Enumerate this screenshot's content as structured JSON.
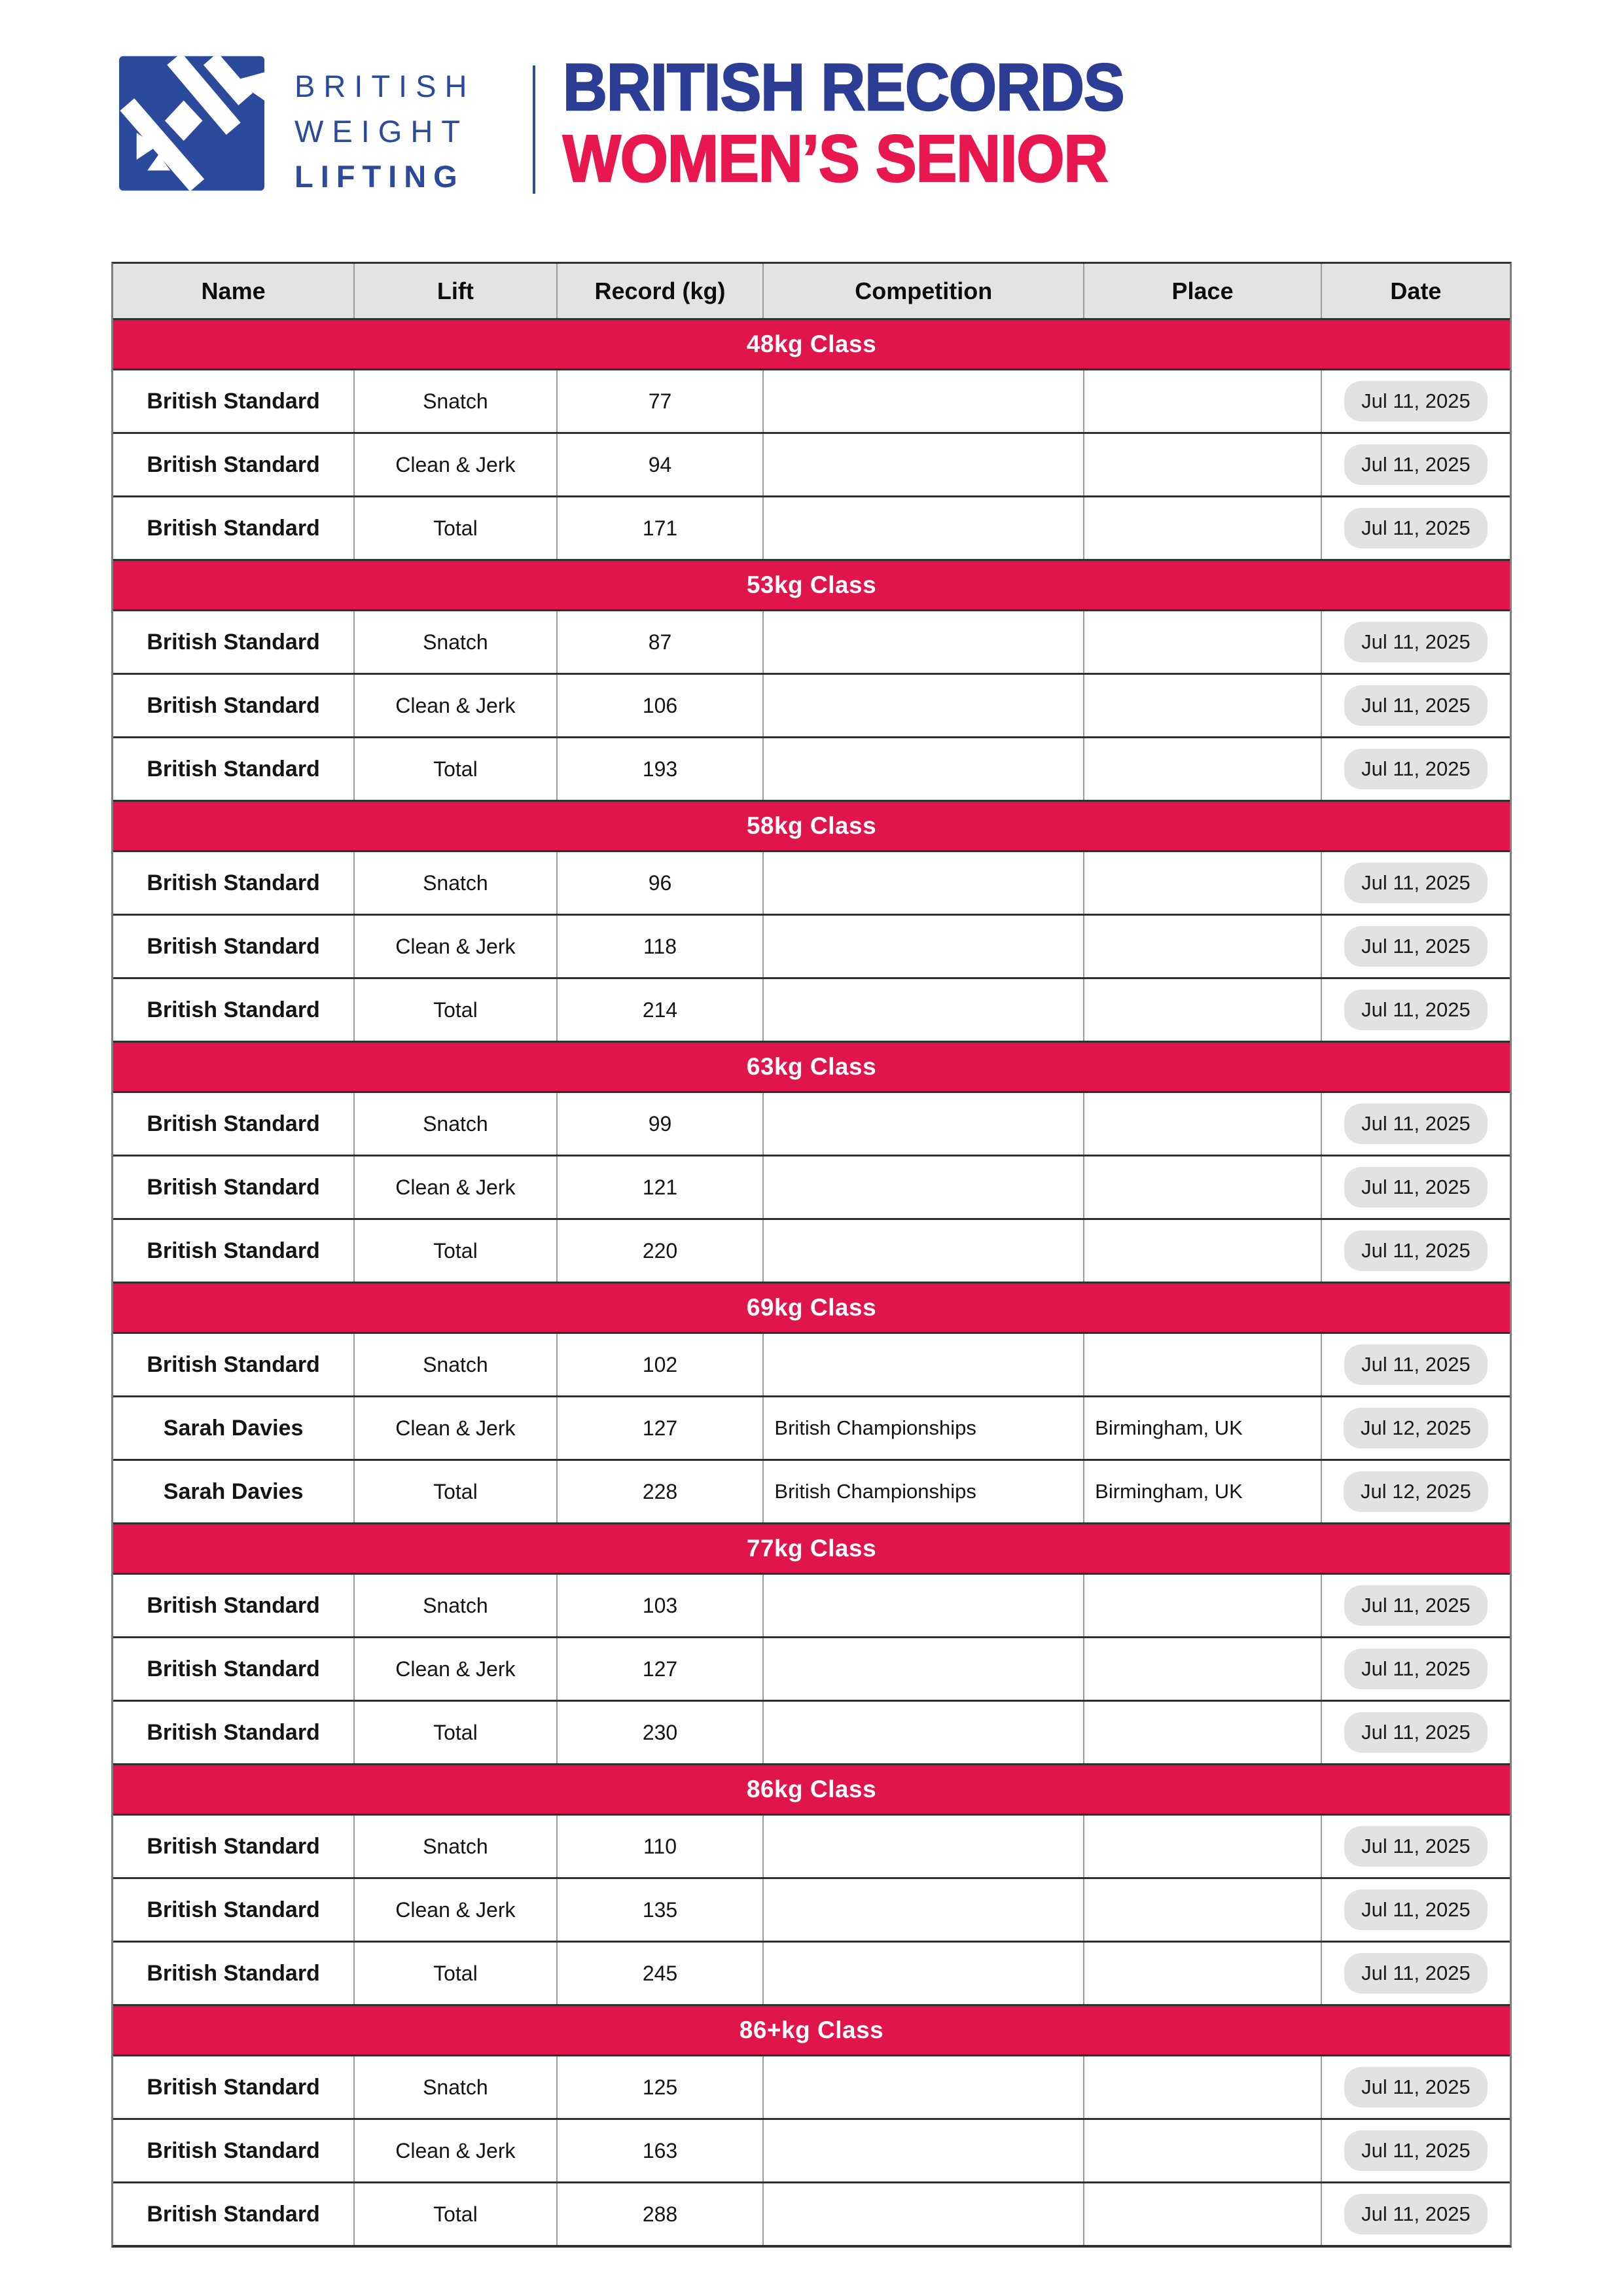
{
  "brand": {
    "name_lines": [
      "BRITISH",
      "WEIGHT",
      "LIFTING"
    ],
    "logo_icon": "bwl-barbell-monogram"
  },
  "header": {
    "title_line1": "BRITISH RECORDS",
    "title_line2": "WOMEN’S SENIOR"
  },
  "table": {
    "columns": [
      "Name",
      "Lift",
      "Record (kg)",
      "Competition",
      "Place",
      "Date"
    ],
    "sections": [
      {
        "class_label": "48kg Class",
        "rows": [
          {
            "name": "British Standard",
            "lift": "Snatch",
            "record": 77,
            "competition": "",
            "place": "",
            "date": "Jul 11, 2025"
          },
          {
            "name": "British Standard",
            "lift": "Clean & Jerk",
            "record": 94,
            "competition": "",
            "place": "",
            "date": "Jul 11, 2025"
          },
          {
            "name": "British Standard",
            "lift": "Total",
            "record": 171,
            "competition": "",
            "place": "",
            "date": "Jul 11, 2025"
          }
        ]
      },
      {
        "class_label": "53kg Class",
        "rows": [
          {
            "name": "British Standard",
            "lift": "Snatch",
            "record": 87,
            "competition": "",
            "place": "",
            "date": "Jul 11, 2025"
          },
          {
            "name": "British Standard",
            "lift": "Clean & Jerk",
            "record": 106,
            "competition": "",
            "place": "",
            "date": "Jul 11, 2025"
          },
          {
            "name": "British Standard",
            "lift": "Total",
            "record": 193,
            "competition": "",
            "place": "",
            "date": "Jul 11, 2025"
          }
        ]
      },
      {
        "class_label": "58kg Class",
        "rows": [
          {
            "name": "British Standard",
            "lift": "Snatch",
            "record": 96,
            "competition": "",
            "place": "",
            "date": "Jul 11, 2025"
          },
          {
            "name": "British Standard",
            "lift": "Clean & Jerk",
            "record": 118,
            "competition": "",
            "place": "",
            "date": "Jul 11, 2025"
          },
          {
            "name": "British Standard",
            "lift": "Total",
            "record": 214,
            "competition": "",
            "place": "",
            "date": "Jul 11, 2025"
          }
        ]
      },
      {
        "class_label": "63kg Class",
        "rows": [
          {
            "name": "British Standard",
            "lift": "Snatch",
            "record": 99,
            "competition": "",
            "place": "",
            "date": "Jul 11, 2025"
          },
          {
            "name": "British Standard",
            "lift": "Clean & Jerk",
            "record": 121,
            "competition": "",
            "place": "",
            "date": "Jul 11, 2025"
          },
          {
            "name": "British Standard",
            "lift": "Total",
            "record": 220,
            "competition": "",
            "place": "",
            "date": "Jul 11, 2025"
          }
        ]
      },
      {
        "class_label": "69kg Class",
        "rows": [
          {
            "name": "British Standard",
            "lift": "Snatch",
            "record": 102,
            "competition": "",
            "place": "",
            "date": "Jul 11, 2025"
          },
          {
            "name": "Sarah Davies",
            "lift": "Clean & Jerk",
            "record": 127,
            "competition": "British Championships",
            "place": "Birmingham, UK",
            "date": "Jul 12, 2025"
          },
          {
            "name": "Sarah Davies",
            "lift": "Total",
            "record": 228,
            "competition": "British Championships",
            "place": "Birmingham, UK",
            "date": "Jul 12, 2025"
          }
        ]
      },
      {
        "class_label": "77kg Class",
        "rows": [
          {
            "name": "British Standard",
            "lift": "Snatch",
            "record": 103,
            "competition": "",
            "place": "",
            "date": "Jul 11, 2025"
          },
          {
            "name": "British Standard",
            "lift": "Clean & Jerk",
            "record": 127,
            "competition": "",
            "place": "",
            "date": "Jul 11, 2025"
          },
          {
            "name": "British Standard",
            "lift": "Total",
            "record": 230,
            "competition": "",
            "place": "",
            "date": "Jul 11, 2025"
          }
        ]
      },
      {
        "class_label": "86kg Class",
        "rows": [
          {
            "name": "British Standard",
            "lift": "Snatch",
            "record": 110,
            "competition": "",
            "place": "",
            "date": "Jul 11, 2025"
          },
          {
            "name": "British Standard",
            "lift": "Clean & Jerk",
            "record": 135,
            "competition": "",
            "place": "",
            "date": "Jul 11, 2025"
          },
          {
            "name": "British Standard",
            "lift": "Total",
            "record": 245,
            "competition": "",
            "place": "",
            "date": "Jul 11, 2025"
          }
        ]
      },
      {
        "class_label": "86+kg Class",
        "rows": [
          {
            "name": "British Standard",
            "lift": "Snatch",
            "record": 125,
            "competition": "",
            "place": "",
            "date": "Jul 11, 2025"
          },
          {
            "name": "British Standard",
            "lift": "Clean & Jerk",
            "record": 163,
            "competition": "",
            "place": "",
            "date": "Jul 11, 2025"
          },
          {
            "name": "British Standard",
            "lift": "Total",
            "record": 288,
            "competition": "",
            "place": "",
            "date": "Jul 11, 2025"
          }
        ]
      }
    ]
  },
  "colors": {
    "brand_blue": "#2b4a9c",
    "title_navy": "#2b3d94",
    "accent_crimson": "#e8174e",
    "band_red": "#e0164a",
    "header_gray": "#e3e3e3",
    "pill_gray": "#e2e2e2"
  }
}
